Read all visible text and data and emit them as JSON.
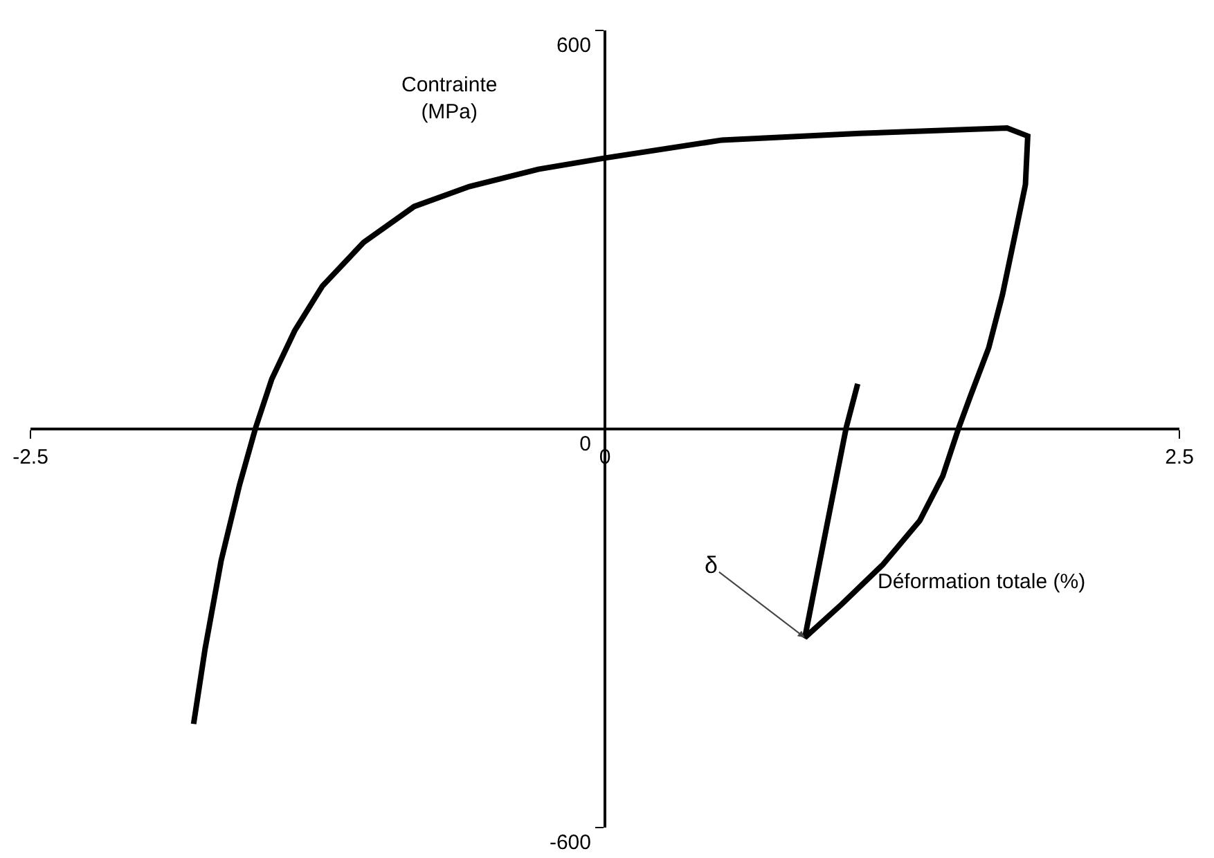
{
  "chart_data": {
    "type": "line",
    "xlabel": "Déformation totale (%)",
    "ylabel": "Contrainte (MPa)",
    "xlim": [
      -2.5,
      2.5
    ],
    "ylim": [
      -600,
      600
    ],
    "xticks": [
      -2.5,
      0,
      2.5
    ],
    "yticks": [
      -600,
      0,
      600
    ],
    "marker": "none",
    "line_style": "solid",
    "series": [
      {
        "color": "#000000",
        "x": [
          -1.79,
          -1.74,
          -1.67,
          -1.59,
          -1.52,
          -1.45,
          -1.35,
          -1.23,
          -1.05,
          -0.83,
          -0.59,
          -0.29,
          0,
          0.51,
          1.11,
          1.75,
          1.84,
          1.83,
          1.79,
          1.73,
          1.67,
          1.59,
          1.54,
          1.47,
          1.37,
          1.21,
          1.03,
          0.87,
          0.97,
          1.05,
          1.1
        ],
        "values": [
          -444,
          -331,
          -198,
          -84,
          2,
          75,
          148,
          215,
          281,
          335,
          365,
          391,
          408,
          435,
          445,
          453,
          441,
          368,
          301,
          202,
          122,
          49,
          2,
          -71,
          -138,
          -204,
          -264,
          -314,
          -138,
          2,
          68
        ]
      }
    ],
    "annotations": [
      {
        "text": "δ",
        "x": 0.87,
        "y": -314
      }
    ]
  }
}
